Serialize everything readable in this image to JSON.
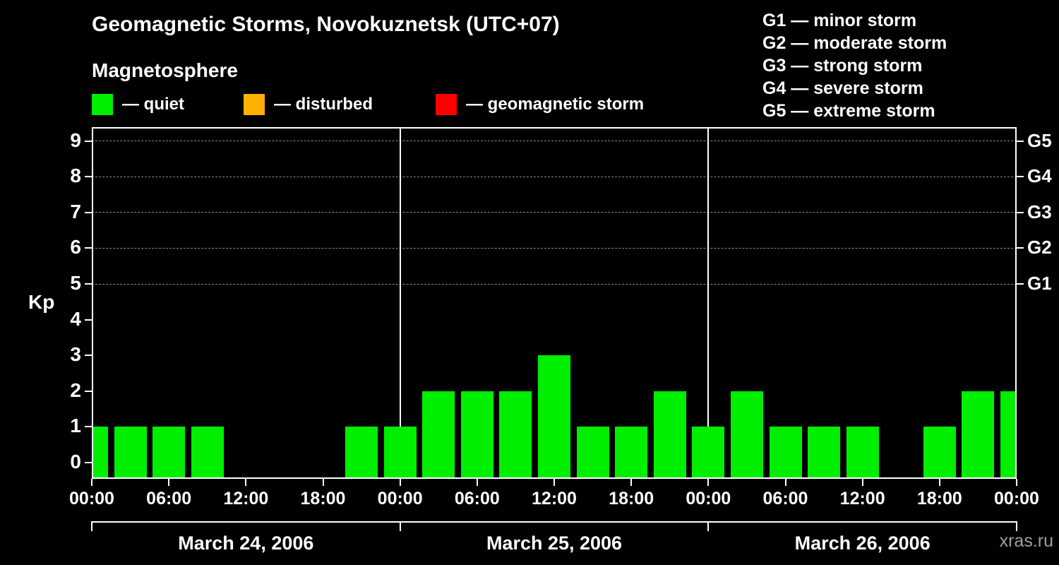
{
  "header": {
    "title": "Geomagnetic Storms, Novokuznetsk (UTC+07)",
    "subtitle": "Magnetosphere",
    "legend": [
      {
        "label": "— quiet",
        "color": "#00ee00"
      },
      {
        "label": "— disturbed",
        "color": "#ffb000"
      },
      {
        "label": "— geomagnetic storm",
        "color": "#ff0000"
      }
    ],
    "storm_scale": [
      "G1 — minor storm",
      "G2 — moderate storm",
      "G3 — strong storm",
      "G4 — severe storm",
      "G5 — extreme storm"
    ]
  },
  "footer": {
    "watermark": "xras.ru"
  },
  "chart_data": {
    "type": "bar",
    "title": "Geomagnetic Storms, Novokuznetsk (UTC+07)",
    "subtitle": "Magnetosphere",
    "xlabel": "",
    "ylabel": "Kp",
    "ylim": [
      0,
      9.4
    ],
    "y_ticks": [
      0,
      1,
      2,
      3,
      4,
      5,
      6,
      7,
      8,
      9
    ],
    "grid": "dashed horizontal lines at G-storm levels (Kp 5..9)",
    "legend_position": "top",
    "bar_interval_hours": 3,
    "x_tick_hours": [
      0,
      6,
      12,
      18,
      24,
      30,
      36,
      42,
      48,
      54,
      60,
      66,
      72
    ],
    "x_tick_labels": [
      "00:00",
      "06:00",
      "12:00",
      "18:00",
      "00:00",
      "06:00",
      "12:00",
      "18:00",
      "00:00",
      "06:00",
      "12:00",
      "18:00",
      "00:00"
    ],
    "day_separator_hours": [
      24,
      48
    ],
    "date_labels": [
      "March 24, 2006",
      "March 25, 2006",
      "March 26, 2006"
    ],
    "values": [
      1,
      1,
      1,
      1,
      0,
      0,
      0,
      1,
      1,
      2,
      2,
      2,
      3,
      1,
      1,
      2,
      1,
      2,
      1,
      1,
      1,
      0,
      1,
      2,
      2
    ],
    "series_note": "Kp index every 3 hours; bars centered on measurement time; first and last bars clipped at plot edges",
    "g_scale": [
      {
        "label": "G1",
        "kp": 5
      },
      {
        "label": "G2",
        "kp": 6
      },
      {
        "label": "G3",
        "kp": 7
      },
      {
        "label": "G4",
        "kp": 8
      },
      {
        "label": "G5",
        "kp": 9
      }
    ],
    "colors": {
      "quiet": "#00ee00",
      "disturbed": "#ffb000",
      "storm": "#ff0000",
      "grid": "#8a8a8a",
      "frame": "#ffffff",
      "background": "#000000"
    },
    "thresholds": {
      "disturbed_kp": 4,
      "storm_kp": 5
    }
  }
}
